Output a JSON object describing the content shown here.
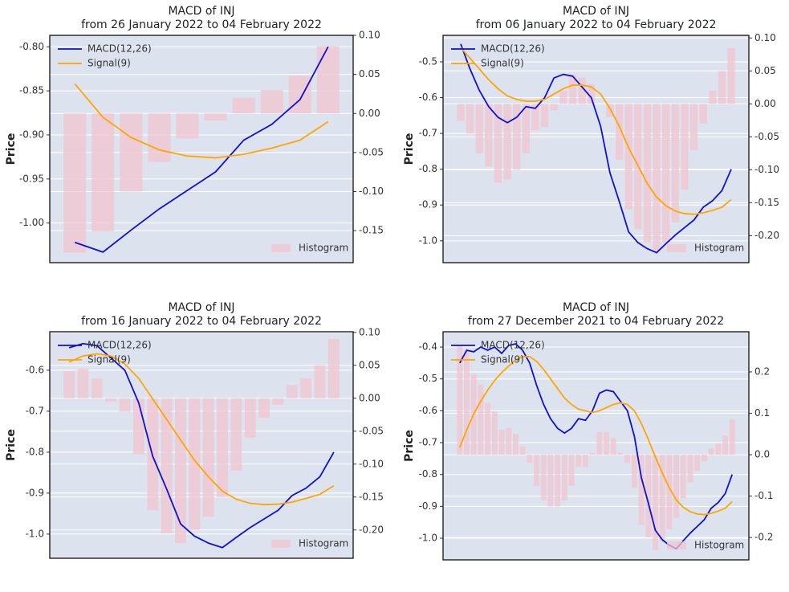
{
  "chart_data": [
    {
      "type": "line",
      "title": "MACD of INJ",
      "subtitle": "from 26 January 2022 to 04 February 2022",
      "ylabel": "Price",
      "ylim": [
        -1.045,
        -0.787
      ],
      "yticks": [
        {
          "value": -0.8,
          "label": "-0.80"
        },
        {
          "value": -0.85,
          "label": "-0.85"
        },
        {
          "value": -0.9,
          "label": "-0.90"
        },
        {
          "value": -0.95,
          "label": "-0.95"
        },
        {
          "value": -1.0,
          "label": "-1.00"
        }
      ],
      "y2lim": [
        -0.191,
        0.1
      ],
      "y2ticks": [
        {
          "value": 0.1,
          "label": "0.10"
        },
        {
          "value": 0.05,
          "label": "0.05"
        },
        {
          "value": 0.0,
          "label": "0.00"
        },
        {
          "value": -0.05,
          "label": "-0.05"
        },
        {
          "value": -0.1,
          "label": "-0.10"
        },
        {
          "value": -0.15,
          "label": "-0.15"
        }
      ],
      "grid": true,
      "legend": "upper left",
      "hist_legend": "lower right",
      "series": [
        {
          "name": "MACD(12,26)",
          "color": "#1010d0",
          "values": [
            -1.022,
            -1.033,
            -1.008,
            -0.984,
            -0.963,
            -0.942,
            -0.906,
            -0.888,
            -0.86,
            -0.8
          ]
        },
        {
          "name": "Signal(9)",
          "color": "#ffa500",
          "values": [
            -0.842,
            -0.88,
            -0.903,
            -0.917,
            -0.924,
            -0.926,
            -0.922,
            -0.915,
            -0.906,
            -0.885
          ]
        },
        {
          "name": "Histogram",
          "color": "#f0c4cf",
          "kind": "bar",
          "axis": "y2",
          "values": [
            -0.178,
            -0.151,
            -0.1,
            -0.062,
            -0.032,
            -0.009,
            0.02,
            0.03,
            0.048,
            0.086
          ]
        }
      ]
    },
    {
      "type": "line",
      "title": "MACD of INJ",
      "subtitle": "from 06 January 2022 to 04 February 2022",
      "ylabel": "Price",
      "ylim": [
        -1.061,
        -0.426
      ],
      "yticks": [
        -0.5,
        -0.6,
        -0.7,
        -0.8,
        -0.9,
        {
          "value": -1.0,
          "label": "-1.0"
        }
      ],
      "y2lim": [
        -0.241,
        0.104
      ],
      "y2ticks": [
        {
          "value": 0.1,
          "label": "0.10"
        },
        {
          "value": 0.05,
          "label": "0.05"
        },
        {
          "value": 0.0,
          "label": "0.00"
        },
        {
          "value": -0.05,
          "label": "-0.05"
        },
        {
          "value": -0.1,
          "label": "-0.10"
        },
        {
          "value": -0.15,
          "label": "-0.15"
        },
        {
          "value": -0.2,
          "label": "-0.20"
        }
      ],
      "grid": true,
      "legend": "upper left",
      "hist_legend": "lower right",
      "series": [
        {
          "name": "MACD(12,26)",
          "color": "#1010d0",
          "values": [
            -0.45,
            -0.52,
            -0.58,
            -0.625,
            -0.655,
            -0.67,
            -0.655,
            -0.625,
            -0.63,
            -0.6,
            -0.545,
            -0.535,
            -0.54,
            -0.57,
            -0.6,
            -0.68,
            -0.81,
            -0.89,
            -0.975,
            -1.005,
            -1.022,
            -1.033,
            -1.008,
            -0.984,
            -0.963,
            -0.942,
            -0.906,
            -0.888,
            -0.86,
            -0.8
          ]
        },
        {
          "name": "Signal(9)",
          "color": "#ffa500",
          "values": [
            -0.46,
            -0.49,
            -0.52,
            -0.55,
            -0.575,
            -0.595,
            -0.605,
            -0.61,
            -0.61,
            -0.605,
            -0.59,
            -0.575,
            -0.565,
            -0.565,
            -0.57,
            -0.59,
            -0.63,
            -0.68,
            -0.74,
            -0.79,
            -0.84,
            -0.878,
            -0.902,
            -0.917,
            -0.924,
            -0.926,
            -0.922,
            -0.915,
            -0.906,
            -0.885
          ]
        },
        {
          "name": "Histogram",
          "color": "#f0c4cf",
          "kind": "bar",
          "axis": "y2",
          "values": [
            -0.026,
            -0.045,
            -0.075,
            -0.095,
            -0.12,
            -0.115,
            -0.1,
            -0.075,
            -0.04,
            -0.035,
            -0.01,
            0.02,
            0.045,
            0.04,
            0.03,
            0.0,
            -0.02,
            -0.085,
            -0.16,
            -0.19,
            -0.21,
            -0.225,
            -0.21,
            -0.18,
            -0.13,
            -0.07,
            -0.03,
            0.02,
            0.05,
            0.085
          ]
        }
      ]
    },
    {
      "type": "line",
      "title": "MACD of INJ",
      "subtitle": "from 16 January 2022 to 04 February 2022",
      "ylabel": "Price",
      "ylim": [
        -1.059,
        -0.506
      ],
      "yticks": [
        -0.6,
        -0.7,
        -0.8,
        -0.9,
        {
          "value": -1.0,
          "label": "-1.0"
        }
      ],
      "y2lim": [
        -0.243,
        0.101
      ],
      "y2ticks": [
        {
          "value": 0.1,
          "label": "0.10"
        },
        {
          "value": 0.05,
          "label": "0.05"
        },
        {
          "value": 0.0,
          "label": "0.00"
        },
        {
          "value": -0.05,
          "label": "-0.05"
        },
        {
          "value": -0.1,
          "label": "-0.10"
        },
        {
          "value": -0.15,
          "label": "-0.15"
        },
        {
          "value": -0.2,
          "label": "-0.20"
        }
      ],
      "grid": true,
      "legend": "upper left",
      "hist_legend": "lower right",
      "series": [
        {
          "name": "MACD(12,26)",
          "color": "#1010d0",
          "values": [
            -0.545,
            -0.535,
            -0.54,
            -0.57,
            -0.6,
            -0.68,
            -0.81,
            -0.89,
            -0.975,
            -1.005,
            -1.022,
            -1.033,
            -1.008,
            -0.984,
            -0.963,
            -0.942,
            -0.906,
            -0.888,
            -0.86,
            -0.8
          ]
        },
        {
          "name": "Signal(9)",
          "color": "#ffa500",
          "values": [
            -0.58,
            -0.565,
            -0.56,
            -0.565,
            -0.585,
            -0.62,
            -0.67,
            -0.72,
            -0.77,
            -0.82,
            -0.86,
            -0.895,
            -0.915,
            -0.925,
            -0.928,
            -0.927,
            -0.922,
            -0.913,
            -0.903,
            -0.882
          ]
        },
        {
          "name": "Histogram",
          "color": "#f0c4cf",
          "kind": "bar",
          "axis": "y2",
          "values": [
            0.041,
            0.045,
            0.03,
            -0.005,
            -0.02,
            -0.085,
            -0.17,
            -0.205,
            -0.22,
            -0.2,
            -0.18,
            -0.15,
            -0.11,
            -0.06,
            -0.03,
            -0.01,
            0.02,
            0.03,
            0.05,
            0.09
          ]
        }
      ]
    },
    {
      "type": "line",
      "title": "MACD of INJ",
      "subtitle": "from 27 December 2021 to 04 February 2022",
      "ylabel": "Price",
      "ylim": [
        -1.068,
        -0.352
      ],
      "yticks": [
        -0.4,
        -0.5,
        -0.6,
        -0.7,
        -0.8,
        -0.9,
        {
          "value": -1.0,
          "label": "-1.0"
        }
      ],
      "y2lim": [
        -0.254,
        0.297
      ],
      "y2ticks": [
        0.2,
        0.1,
        {
          "value": 0.0,
          "label": "0.0"
        },
        -0.1,
        -0.2
      ],
      "grid": true,
      "legend": "upper left",
      "hist_legend": "lower right",
      "series": [
        {
          "name": "MACD(12,26)",
          "color": "#1010d0",
          "values": [
            -0.45,
            -0.41,
            -0.415,
            -0.4,
            -0.41,
            -0.4,
            -0.42,
            -0.395,
            -0.39,
            -0.41,
            -0.45,
            -0.52,
            -0.58,
            -0.625,
            -0.655,
            -0.67,
            -0.655,
            -0.625,
            -0.63,
            -0.6,
            -0.545,
            -0.535,
            -0.54,
            -0.57,
            -0.6,
            -0.68,
            -0.81,
            -0.89,
            -0.975,
            -1.005,
            -1.022,
            -1.033,
            -1.008,
            -0.984,
            -0.963,
            -0.942,
            -0.906,
            -0.888,
            -0.86,
            -0.8
          ]
        },
        {
          "name": "Signal(9)",
          "color": "#ffa500",
          "values": [
            -0.715,
            -0.66,
            -0.61,
            -0.57,
            -0.535,
            -0.505,
            -0.48,
            -0.46,
            -0.44,
            -0.43,
            -0.43,
            -0.445,
            -0.47,
            -0.5,
            -0.53,
            -0.56,
            -0.58,
            -0.595,
            -0.6,
            -0.605,
            -0.6,
            -0.59,
            -0.58,
            -0.575,
            -0.58,
            -0.6,
            -0.64,
            -0.69,
            -0.745,
            -0.795,
            -0.842,
            -0.88,
            -0.903,
            -0.917,
            -0.924,
            -0.926,
            -0.922,
            -0.915,
            -0.906,
            -0.885
          ]
        },
        {
          "name": "Histogram",
          "color": "#f0c4cf",
          "kind": "bar",
          "axis": "y2",
          "values": [
            0.265,
            0.25,
            0.195,
            0.17,
            0.125,
            0.105,
            0.06,
            0.065,
            0.05,
            0.02,
            -0.02,
            -0.075,
            -0.11,
            -0.125,
            -0.125,
            -0.11,
            -0.075,
            -0.03,
            -0.03,
            0.005,
            0.055,
            0.055,
            0.04,
            0.005,
            -0.02,
            -0.08,
            -0.17,
            -0.2,
            -0.23,
            -0.21,
            -0.18,
            -0.153,
            -0.105,
            -0.067,
            -0.039,
            -0.016,
            0.016,
            0.027,
            0.046,
            0.085
          ]
        }
      ]
    }
  ]
}
